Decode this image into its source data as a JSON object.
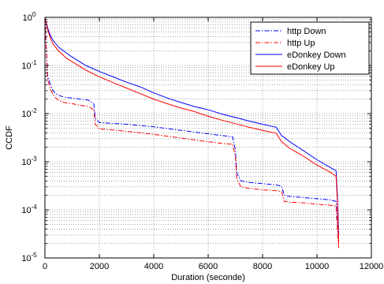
{
  "chart_data": {
    "type": "line",
    "xlabel": "Duration (seconde)",
    "ylabel": "CCDF",
    "xlim": [
      0,
      12000
    ],
    "ylim": [
      1e-05,
      1
    ],
    "yscale": "log",
    "grid": true,
    "legend_position": "top-right",
    "x_ticks": [
      "0",
      "2000",
      "4000",
      "6000",
      "8000",
      "10000",
      "12000"
    ],
    "y_ticks": [
      {
        "base": "10",
        "exp": "0"
      },
      {
        "base": "10",
        "exp": "-1"
      },
      {
        "base": "10",
        "exp": "-2"
      },
      {
        "base": "10",
        "exp": "-3"
      },
      {
        "base": "10",
        "exp": "-4"
      },
      {
        "base": "10",
        "exp": "-5"
      }
    ],
    "series": [
      {
        "name": "http Down",
        "color": "#0000ff",
        "dash": "dashdot",
        "x": [
          0,
          40,
          100,
          200,
          300,
          400,
          500,
          700,
          1000,
          1300,
          1600,
          1800,
          1850,
          2000,
          3000,
          4000,
          5000,
          6000,
          6500,
          6900,
          7000,
          7050,
          7200,
          7500,
          8000,
          8500,
          8700,
          8800,
          9000,
          9500,
          10000,
          10500,
          10700,
          10750,
          10800
        ],
        "y": [
          1,
          0.3,
          0.06,
          0.04,
          0.03,
          0.026,
          0.024,
          0.022,
          0.021,
          0.02,
          0.019,
          0.016,
          0.008,
          0.0065,
          0.006,
          0.0053,
          0.0045,
          0.0038,
          0.0035,
          0.0033,
          0.0018,
          0.0006,
          0.0004,
          0.00037,
          0.00035,
          0.00033,
          0.00031,
          0.0002,
          0.00019,
          0.00018,
          0.00017,
          0.00016,
          0.00015,
          6e-05,
          2e-05
        ]
      },
      {
        "name": "http Up",
        "color": "#ff0000",
        "dash": "dashdot",
        "x": [
          0,
          40,
          100,
          200,
          300,
          400,
          500,
          700,
          1000,
          1300,
          1600,
          1800,
          1850,
          2000,
          3000,
          4000,
          5000,
          6000,
          6500,
          6900,
          7000,
          7050,
          7200,
          7500,
          8000,
          8500,
          8700,
          8800,
          9000,
          9500,
          10000,
          10500,
          10700,
          10750,
          10800
        ],
        "y": [
          1,
          0.25,
          0.05,
          0.032,
          0.025,
          0.021,
          0.019,
          0.017,
          0.016,
          0.015,
          0.014,
          0.012,
          0.006,
          0.0048,
          0.0043,
          0.0037,
          0.0031,
          0.0026,
          0.0024,
          0.0023,
          0.0013,
          0.00045,
          0.0003,
          0.00028,
          0.00026,
          0.00025,
          0.00024,
          0.00015,
          0.000145,
          0.00014,
          0.00013,
          0.000125,
          0.00012,
          4e-05,
          1.5e-05
        ]
      },
      {
        "name": "eDonkey Down",
        "color": "#0000ff",
        "dash": "solid",
        "x": [
          0,
          100,
          200,
          300,
          500,
          800,
          1000,
          1500,
          2000,
          2500,
          3000,
          3500,
          4000,
          4500,
          5000,
          5500,
          6000,
          6500,
          7000,
          7500,
          8000,
          8500,
          8700,
          9000,
          9500,
          10000,
          10500,
          10700,
          10750,
          10800
        ],
        "y": [
          1,
          0.6,
          0.42,
          0.33,
          0.24,
          0.18,
          0.15,
          0.1,
          0.075,
          0.058,
          0.045,
          0.036,
          0.027,
          0.021,
          0.017,
          0.014,
          0.012,
          0.0098,
          0.0083,
          0.007,
          0.006,
          0.0052,
          0.0035,
          0.0026,
          0.0017,
          0.0011,
          0.00075,
          0.00065,
          0.0002,
          3e-05
        ]
      },
      {
        "name": "eDonkey Up",
        "color": "#ff0000",
        "dash": "solid",
        "x": [
          0,
          100,
          200,
          300,
          500,
          800,
          1000,
          1500,
          2000,
          2500,
          3000,
          3500,
          4000,
          4500,
          5000,
          5500,
          6000,
          6500,
          7000,
          7500,
          8000,
          8500,
          8700,
          9000,
          9500,
          10000,
          10500,
          10700,
          10750,
          10800
        ],
        "y": [
          1,
          0.55,
          0.37,
          0.28,
          0.2,
          0.14,
          0.12,
          0.08,
          0.058,
          0.044,
          0.034,
          0.026,
          0.02,
          0.016,
          0.013,
          0.011,
          0.0088,
          0.0073,
          0.0062,
          0.0052,
          0.0045,
          0.0039,
          0.0026,
          0.0019,
          0.0013,
          0.00085,
          0.0006,
          0.0005,
          0.00015,
          2e-05
        ]
      }
    ]
  }
}
